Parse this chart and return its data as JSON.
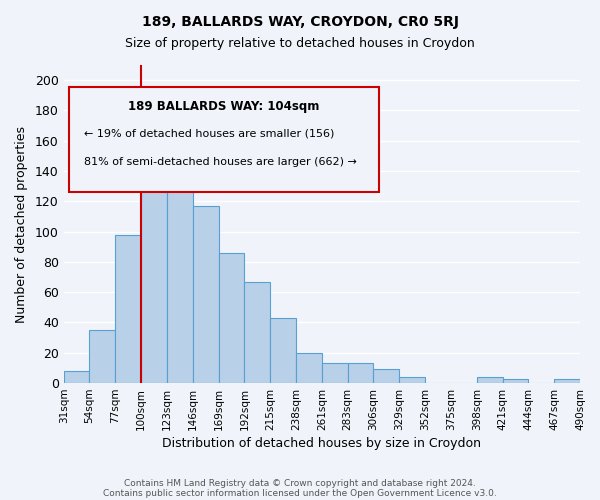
{
  "title": "189, BALLARDS WAY, CROYDON, CR0 5RJ",
  "subtitle": "Size of property relative to detached houses in Croydon",
  "xlabel": "Distribution of detached houses by size in Croydon",
  "ylabel": "Number of detached properties",
  "bar_color": "#b8d0e8",
  "bar_edge_color": "#5a9fd4",
  "background_color": "#f0f4fa",
  "grid_color": "#ffffff",
  "tick_labels": [
    "31sqm",
    "54sqm",
    "77sqm",
    "100sqm",
    "123sqm",
    "146sqm",
    "169sqm",
    "192sqm",
    "215sqm",
    "238sqm",
    "261sqm",
    "283sqm",
    "306sqm",
    "329sqm",
    "352sqm",
    "375sqm",
    "398sqm",
    "421sqm",
    "444sqm",
    "467sqm",
    "490sqm"
  ],
  "bar_heights": [
    8,
    35,
    98,
    138,
    163,
    117,
    86,
    67,
    43,
    20,
    13,
    13,
    9,
    4,
    0,
    0,
    4,
    3,
    0,
    3
  ],
  "ylim": [
    0,
    210
  ],
  "yticks": [
    0,
    20,
    40,
    60,
    80,
    100,
    120,
    140,
    160,
    180,
    200
  ],
  "property_line_x": 2.5,
  "annotation_title": "189 BALLARDS WAY: 104sqm",
  "annotation_line1": "← 19% of detached houses are smaller (156)",
  "annotation_line2": "81% of semi-detached houses are larger (662) →",
  "footnote1": "Contains HM Land Registry data © Crown copyright and database right 2024.",
  "footnote2": "Contains public sector information licensed under the Open Government Licence v3.0.",
  "line_color": "#cc0000",
  "annotation_border_color": "#cc0000"
}
